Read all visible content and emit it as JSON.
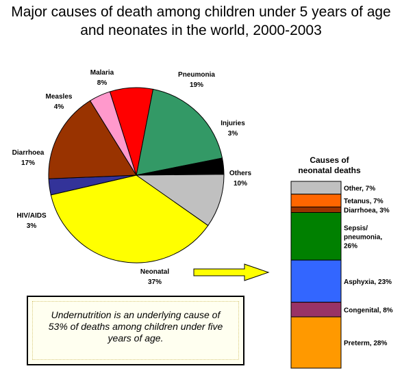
{
  "title_line1": "Major causes of death among children under 5 years of age",
  "title_line2": "and neonates in the world, 2000-2003",
  "note": "Undernutrition is an underlying cause of 53% of deaths among children under five years of age.",
  "chart_data": [
    {
      "type": "pie",
      "slices": [
        {
          "name": "Pneumonia",
          "value": 19,
          "label": "19%",
          "color": "#339966"
        },
        {
          "name": "Injuries",
          "value": 3,
          "label": "3%",
          "color": "#000000"
        },
        {
          "name": "Others",
          "value": 10,
          "label": "10%",
          "color": "#c0c0c0"
        },
        {
          "name": "Neonatal",
          "value": 37,
          "label": "37%",
          "color": "#ffff00"
        },
        {
          "name": "HIV/AIDS",
          "value": 3,
          "label": "3%",
          "color": "#333399"
        },
        {
          "name": "Diarrhoea",
          "value": 17,
          "label": "17%",
          "color": "#993300"
        },
        {
          "name": "Measles",
          "value": 4,
          "label": "4%",
          "color": "#ff99cc"
        },
        {
          "name": "Malaria",
          "value": 8,
          "label": "8%",
          "color": "#ff0000"
        }
      ]
    },
    {
      "type": "bar",
      "stacked": true,
      "title": [
        "Causes of",
        "neonatal deaths"
      ],
      "segments": [
        {
          "name": "Other",
          "value": 7,
          "label": "Other, 7%",
          "color": "#c0c0c0"
        },
        {
          "name": "Tetanus",
          "value": 7,
          "label": "Tetanus, 7%",
          "color": "#ff6600"
        },
        {
          "name": "Diarrhoea",
          "value": 3,
          "label": "Diarrhoea, 3%",
          "color": "#993300"
        },
        {
          "name": "Sepsis/ pneumonia",
          "value": 26,
          "label": [
            "Sepsis/",
            "pneumonia,",
            "26%"
          ],
          "color": "#008000"
        },
        {
          "name": "Asphyxia",
          "value": 23,
          "label": "Asphyxia, 23%",
          "color": "#3366ff"
        },
        {
          "name": "Congenital",
          "value": 8,
          "label": "Congenital, 8%",
          "color": "#993366"
        },
        {
          "name": "Preterm",
          "value": 28,
          "label": "Preterm, 28%",
          "color": "#ff9900"
        }
      ]
    }
  ]
}
